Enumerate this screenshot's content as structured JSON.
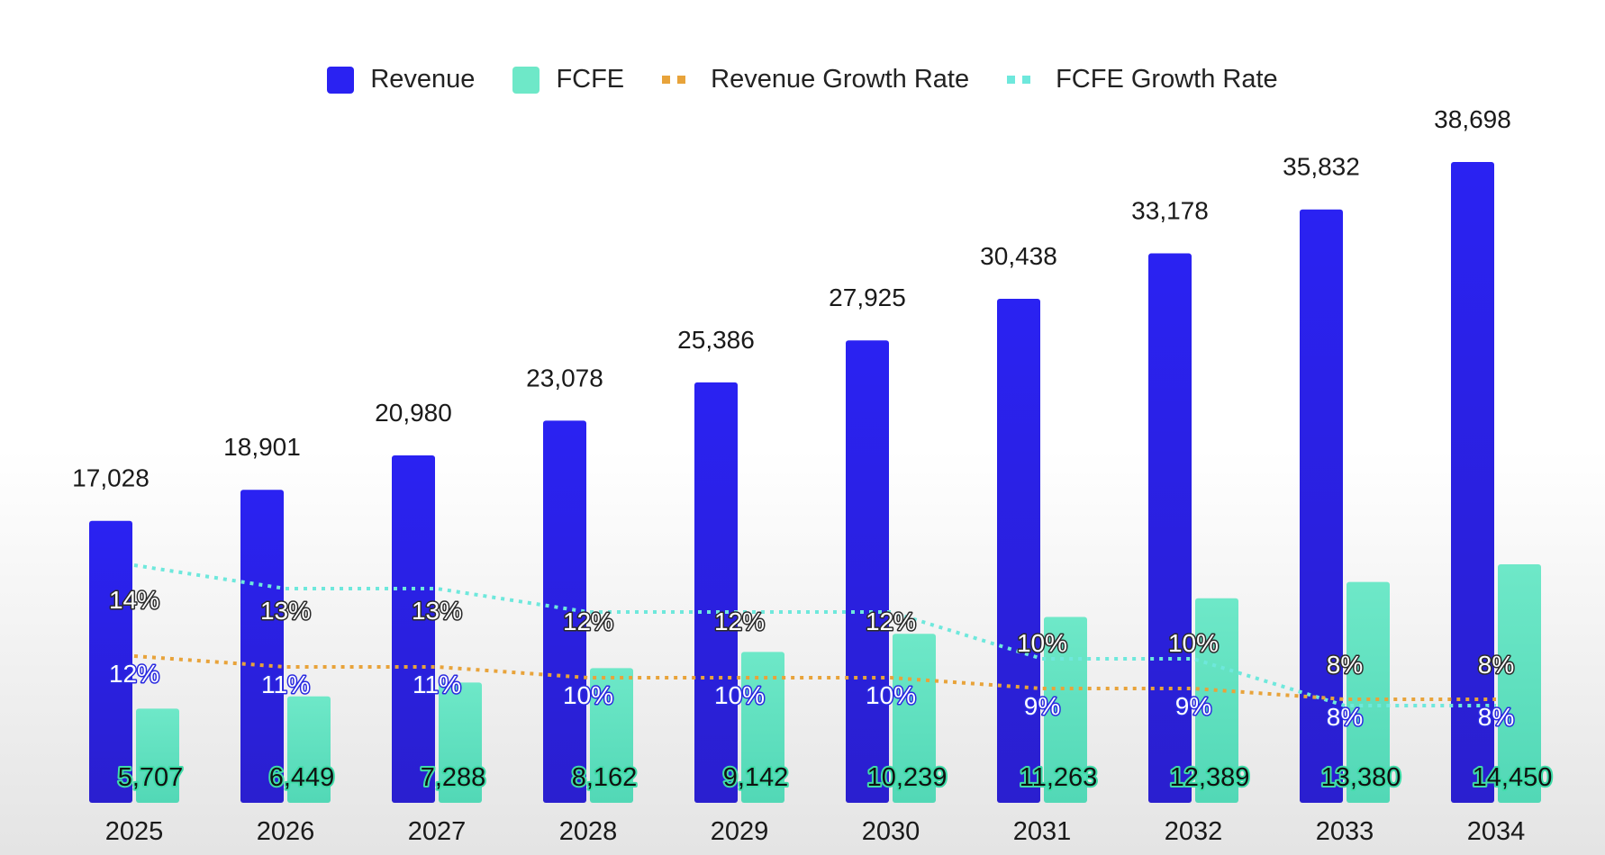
{
  "legend": {
    "revenue": "Revenue",
    "fcfe": "FCFE",
    "revenue_growth": "Revenue Growth Rate",
    "fcfe_growth": "FCFE Growth Rate"
  },
  "colors": {
    "revenue_top": "#2a22f2",
    "revenue_bottom": "#2a1fcf",
    "fcfe_top": "#6ee8c8",
    "fcfe_bottom": "#52d8b6",
    "revenue_growth": "#e8a33a",
    "fcfe_growth": "#6ee8dc"
  },
  "chart_data": {
    "type": "bar",
    "categories": [
      "2025",
      "2026",
      "2027",
      "2028",
      "2029",
      "2030",
      "2031",
      "2032",
      "2033",
      "2034"
    ],
    "series": [
      {
        "name": "Revenue",
        "values": [
          17028,
          18901,
          20980,
          23078,
          25386,
          27925,
          30438,
          33178,
          35832,
          38698
        ],
        "labels": [
          "17,028",
          "18,901",
          "20,980",
          "23,078",
          "25,386",
          "27,925",
          "30,438",
          "33,178",
          "35,832",
          "38,698"
        ]
      },
      {
        "name": "FCFE",
        "values": [
          5707,
          6449,
          7288,
          8162,
          9142,
          10239,
          11263,
          12389,
          13380,
          14450
        ],
        "labels": [
          "5,707",
          "6,449",
          "7,288",
          "8,162",
          "9,142",
          "10,239",
          "11,263",
          "12,389",
          "13,380",
          "14,450"
        ]
      },
      {
        "name": "Revenue Growth Rate",
        "values": [
          14,
          13,
          13,
          12,
          12,
          12,
          10,
          10,
          8,
          8
        ],
        "labels": [
          "14%",
          "13%",
          "13%",
          "12%",
          "12%",
          "12%",
          "10%",
          "10%",
          "8%",
          "8%"
        ]
      },
      {
        "name": "FCFE Growth Rate",
        "values": [
          12,
          11,
          11,
          10,
          10,
          10,
          9,
          9,
          8,
          8
        ],
        "labels": [
          "12%",
          "11%",
          "11%",
          "10%",
          "10%",
          "10%",
          "9%",
          "9%",
          "8%",
          "8%"
        ]
      }
    ],
    "title": "",
    "xlabel": "",
    "ylabel": "",
    "grid": false,
    "legend_position": "top"
  }
}
